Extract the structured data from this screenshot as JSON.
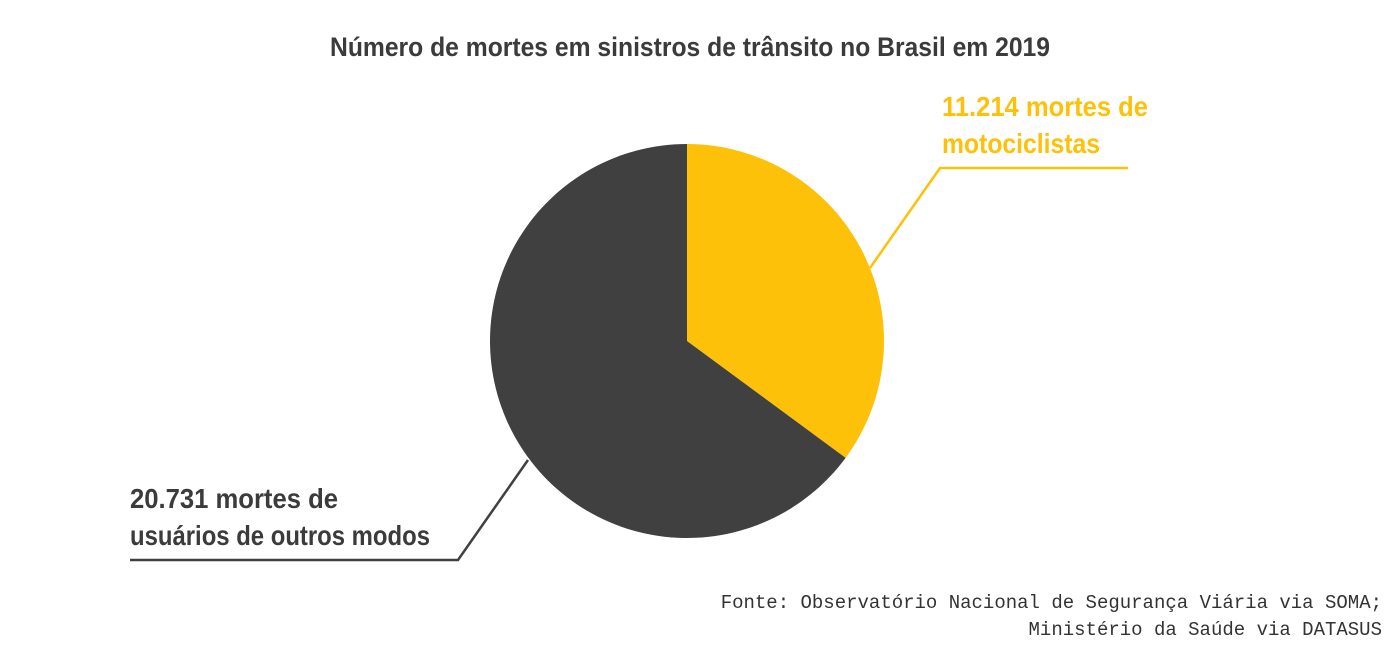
{
  "chart_data": {
    "type": "pie",
    "title": "Número de mortes em sinistros de trânsito no Brasil em 2019",
    "slices": [
      {
        "label_lines": [
          "11.214 mortes de",
          "motociclistas"
        ],
        "value": 11214,
        "color": "#FDC10A"
      },
      {
        "label_lines": [
          "20.731 mortes de",
          "usuários de outros modos"
        ],
        "value": 20731,
        "color": "#404040"
      }
    ],
    "start_angle": "12 o'clock",
    "direction": "clockwise",
    "source_lines": [
      "Fonte: Observatório Nacional de Segurança Viária via SOMA;",
      "Ministério da Saúde via DATASUS"
    ]
  }
}
